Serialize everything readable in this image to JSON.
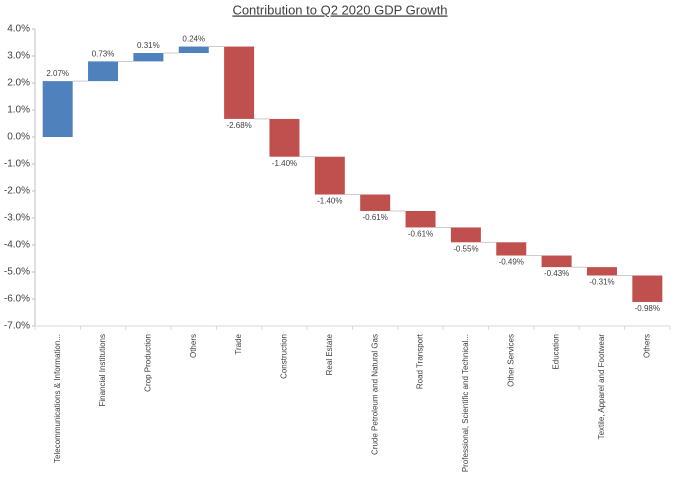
{
  "chart_data": {
    "type": "waterfall",
    "title": "Contribution to Q2 2020 GDP Growth",
    "categories": [
      "Telecommunications & Information...",
      "Financial Institutions",
      "Crop Production",
      "Others",
      "Trade",
      "Construction",
      "Real Estate",
      "Crude Petroleum and Natural Gas",
      "Road Transport",
      "Professional, Scientific and Technical...",
      "Other Services",
      "Education",
      "Textile, Apparel and Footwear",
      "Others"
    ],
    "values": [
      2.07,
      0.73,
      0.31,
      0.24,
      -2.68,
      -1.4,
      -1.4,
      -0.61,
      -0.61,
      -0.55,
      -0.49,
      -0.43,
      -0.31,
      -0.98
    ],
    "value_labels": [
      "2.07%",
      "0.73%",
      "0.31%",
      "0.24%",
      "-2.68%",
      "-1.40%",
      "-1.40%",
      "-0.61%",
      "-0.61%",
      "-0.55%",
      "-0.49%",
      "-0.43%",
      "-0.31%",
      "-0.98%"
    ],
    "positive_color": "#4f81bd",
    "negative_color": "#c0504d",
    "ylim": [
      -7.0,
      4.0
    ],
    "yticks": [
      {
        "value": 4.0,
        "label": "4.0%"
      },
      {
        "value": 3.0,
        "label": "3.0%"
      },
      {
        "value": 2.0,
        "label": "2.0%"
      },
      {
        "value": 1.0,
        "label": "1.0%"
      },
      {
        "value": 0.0,
        "label": "0.0%"
      },
      {
        "value": -1.0,
        "label": "-1.0%"
      },
      {
        "value": -2.0,
        "label": "-2.0%"
      },
      {
        "value": -3.0,
        "label": "-3.0%"
      },
      {
        "value": -4.0,
        "label": "-4.0%"
      },
      {
        "value": -5.0,
        "label": "-5.0%"
      },
      {
        "value": -6.0,
        "label": "-6.0%"
      },
      {
        "value": -7.0,
        "label": "-7.0%"
      }
    ]
  }
}
